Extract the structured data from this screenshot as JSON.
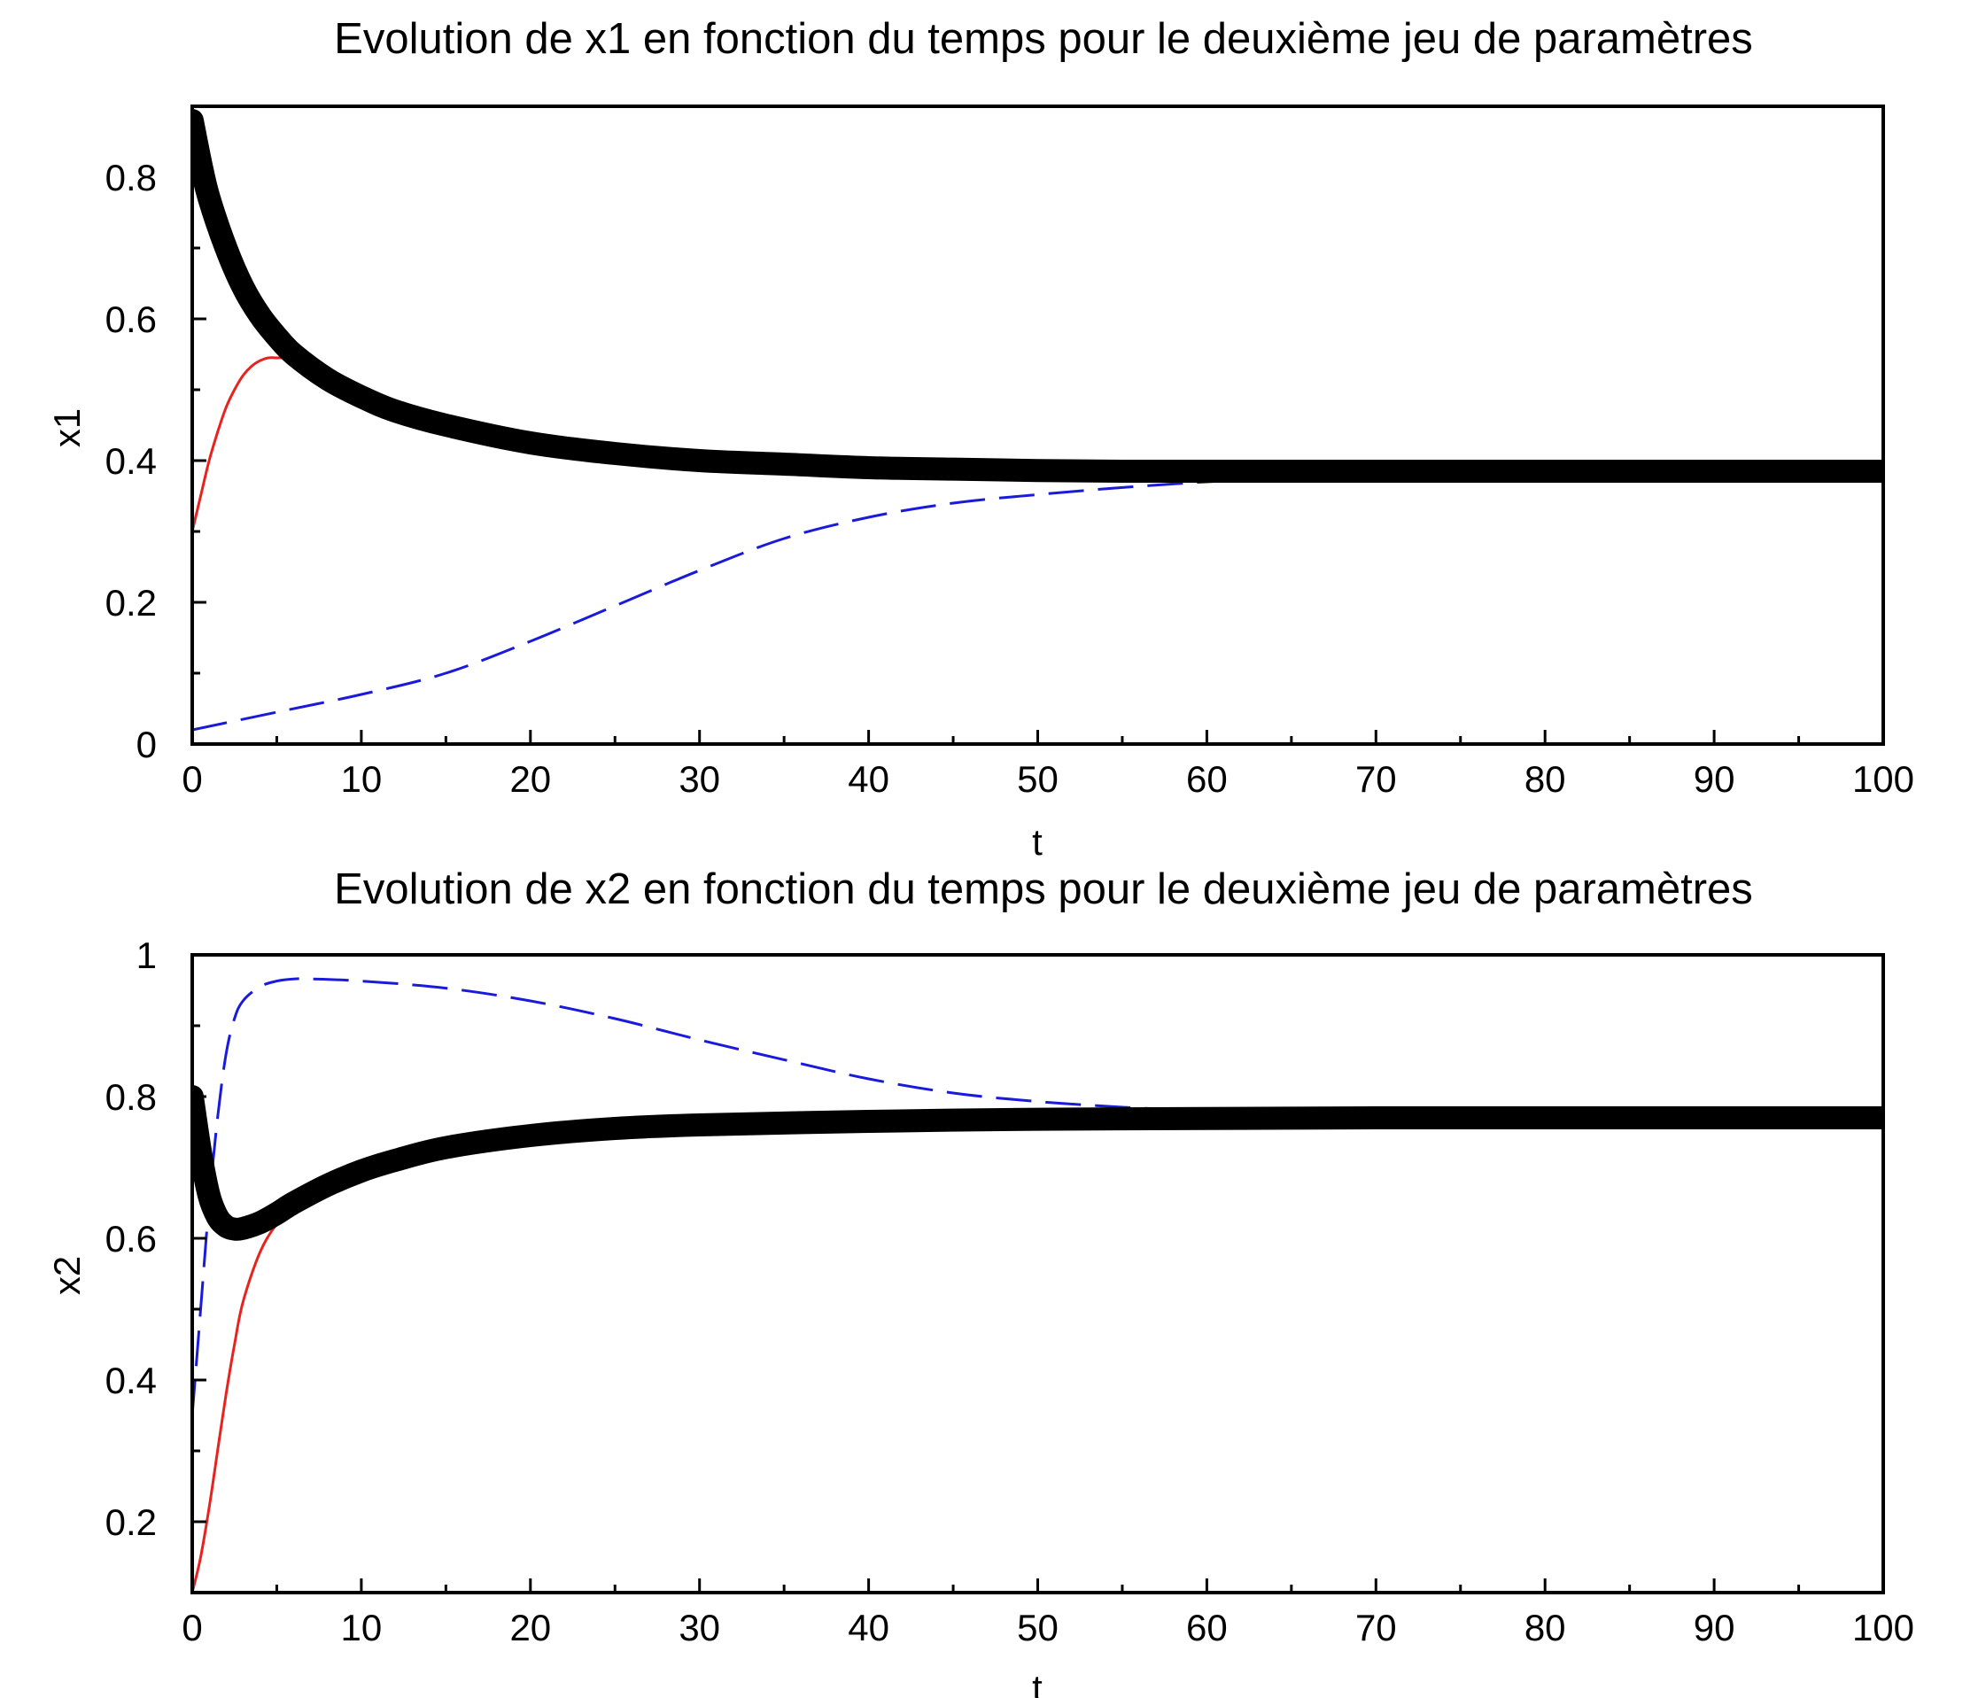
{
  "colors": {
    "series_black": "#000000",
    "series_red": "#e8231f",
    "series_blue": "#1a1adc"
  },
  "chart_data": [
    {
      "type": "line",
      "title": "Evolution de x1 en fonction du temps pour le deuxième jeu de paramètres",
      "xlabel": "t",
      "ylabel": "x1",
      "xlim": [
        0,
        100
      ],
      "ylim": [
        0,
        0.9
      ],
      "xticks": [
        0,
        10,
        20,
        30,
        40,
        50,
        60,
        70,
        80,
        90,
        100
      ],
      "xtick_labels": [
        "0",
        "10",
        "20",
        "30",
        "40",
        "50",
        "60",
        "70",
        "80",
        "90",
        "100"
      ],
      "xminor_step": 5,
      "yticks": [
        0,
        0.2,
        0.4,
        0.6,
        0.8
      ],
      "ytick_labels": [
        "0",
        "0.2",
        "0.4",
        "0.6",
        "0.8"
      ],
      "yminor_step": 0.1,
      "grid": false,
      "series": [
        {
          "style": "solid-thick",
          "color": "#000000",
          "x": [
            0,
            0.5,
            1,
            2,
            3,
            4,
            5,
            6,
            8,
            10,
            12,
            15,
            20,
            25,
            30,
            35,
            40,
            45,
            50,
            55,
            60,
            70,
            80,
            90,
            100
          ],
          "y": [
            0.88,
            0.82,
            0.77,
            0.7,
            0.645,
            0.605,
            0.575,
            0.55,
            0.515,
            0.49,
            0.47,
            0.45,
            0.425,
            0.41,
            0.4,
            0.395,
            0.39,
            0.388,
            0.386,
            0.385,
            0.385,
            0.385,
            0.385,
            0.385,
            0.385
          ]
        },
        {
          "style": "solid",
          "color": "#e8231f",
          "x": [
            0,
            0.5,
            1,
            1.5,
            2,
            2.5,
            3,
            3.5,
            4,
            4.5,
            5,
            5.5,
            6
          ],
          "y": [
            0.3,
            0.35,
            0.4,
            0.44,
            0.475,
            0.5,
            0.52,
            0.533,
            0.541,
            0.545,
            0.545,
            0.545,
            0.545
          ]
        },
        {
          "style": "dashed",
          "color": "#1a1adc",
          "x": [
            0,
            5,
            10,
            15,
            20,
            25,
            30,
            35,
            40,
            45,
            50,
            55,
            60,
            63
          ],
          "y": [
            0.02,
            0.045,
            0.07,
            0.1,
            0.145,
            0.195,
            0.245,
            0.29,
            0.32,
            0.34,
            0.352,
            0.362,
            0.37,
            0.373
          ]
        }
      ]
    },
    {
      "type": "line",
      "title": "Evolution de x2 en fonction du temps pour le deuxième jeu de paramètres",
      "xlabel": "t",
      "ylabel": "x2",
      "xlim": [
        0,
        100
      ],
      "ylim": [
        0.1,
        1
      ],
      "xticks": [
        0,
        10,
        20,
        30,
        40,
        50,
        60,
        70,
        80,
        90,
        100
      ],
      "xtick_labels": [
        "0",
        "10",
        "20",
        "30",
        "40",
        "50",
        "60",
        "70",
        "80",
        "90",
        "100"
      ],
      "xminor_step": 5,
      "yticks": [
        0.2,
        0.4,
        0.6,
        0.8,
        1
      ],
      "ytick_labels": [
        "0.2",
        "0.4",
        "0.6",
        "0.8",
        "1"
      ],
      "yminor_step": 0.1,
      "grid": false,
      "series": [
        {
          "style": "solid-thick",
          "color": "#000000",
          "x": [
            0,
            0.5,
            1,
            1.5,
            2,
            2.5,
            3,
            4,
            5,
            6,
            8,
            10,
            12,
            15,
            20,
            25,
            30,
            40,
            50,
            60,
            70,
            80,
            90,
            100
          ],
          "y": [
            0.8,
            0.72,
            0.66,
            0.63,
            0.617,
            0.613,
            0.614,
            0.622,
            0.635,
            0.65,
            0.675,
            0.695,
            0.71,
            0.728,
            0.745,
            0.755,
            0.76,
            0.765,
            0.768,
            0.769,
            0.77,
            0.77,
            0.77,
            0.77
          ]
        },
        {
          "style": "solid",
          "color": "#e8231f",
          "x": [
            0,
            0.5,
            1,
            1.5,
            2,
            2.5,
            3,
            4,
            5,
            6,
            7
          ],
          "y": [
            0.1,
            0.15,
            0.22,
            0.3,
            0.38,
            0.45,
            0.51,
            0.58,
            0.62,
            0.64,
            0.652
          ]
        },
        {
          "style": "dashed",
          "color": "#1a1adc",
          "x": [
            0,
            0.5,
            1,
            1.5,
            2,
            2.5,
            3,
            4,
            5,
            6,
            7,
            10,
            15,
            20,
            25,
            30,
            35,
            40,
            45,
            50,
            55,
            58
          ],
          "y": [
            0.35,
            0.5,
            0.65,
            0.77,
            0.86,
            0.91,
            0.935,
            0.955,
            0.963,
            0.966,
            0.966,
            0.963,
            0.953,
            0.935,
            0.91,
            0.88,
            0.852,
            0.825,
            0.805,
            0.793,
            0.785,
            0.782
          ]
        }
      ]
    }
  ]
}
